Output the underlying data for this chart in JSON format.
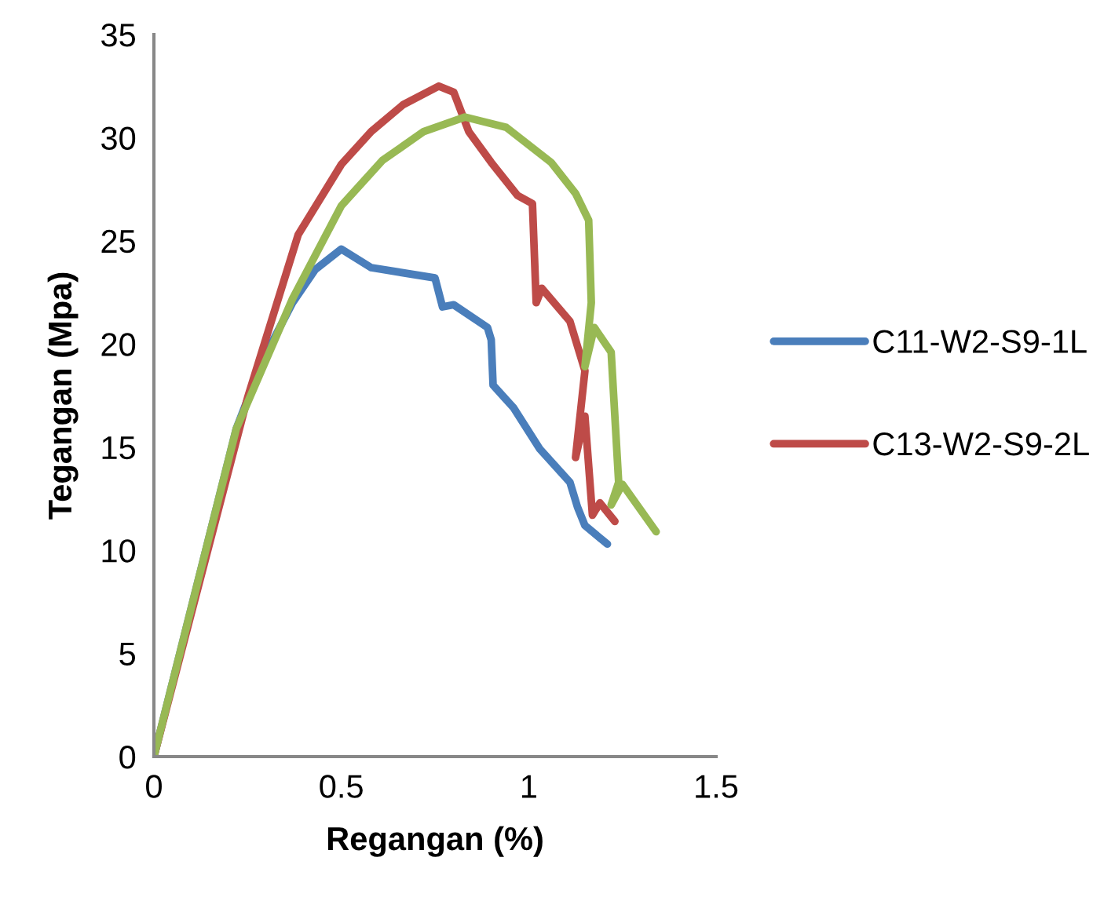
{
  "chart_data": {
    "type": "line",
    "xlabel": "Regangan (%)",
    "ylabel": "Tegangan (Mpa)",
    "xlim": [
      0,
      1.5
    ],
    "xticks": [
      0,
      0.5,
      1,
      1.5
    ],
    "ylim": [
      0,
      35
    ],
    "yticks": [
      0,
      5,
      10,
      15,
      20,
      25,
      30,
      35
    ],
    "grid": false,
    "legend": "right",
    "marker": "none",
    "line_style": "solid",
    "series": [
      {
        "name": "C11-W2-S9-1L",
        "color": "#4a7ebb",
        "x": [
          0,
          0.22,
          0.29,
          0.37,
          0.43,
          0.5,
          0.58,
          0.75,
          0.77,
          0.8,
          0.89,
          0.9,
          0.905,
          0.96,
          1.03,
          1.11,
          1.13,
          1.15,
          1.21
        ],
        "values": [
          0,
          15.9,
          19.2,
          22.0,
          23.6,
          24.6,
          23.7,
          23.2,
          21.8,
          21.9,
          20.8,
          20.2,
          18.0,
          16.9,
          14.9,
          13.3,
          12.1,
          11.2,
          10.3
        ]
      },
      {
        "name": "C13-W2-S9-2L",
        "color": "#be4b48",
        "x": [
          0,
          0.25,
          0.385,
          0.5,
          0.58,
          0.665,
          0.76,
          0.8,
          0.84,
          0.9,
          0.97,
          1.01,
          1.02,
          1.035,
          1.11,
          1.15,
          1.125,
          1.15,
          1.17,
          1.19,
          1.23
        ],
        "values": [
          0,
          17.4,
          25.3,
          28.7,
          30.3,
          31.6,
          32.5,
          32.2,
          30.3,
          28.8,
          27.2,
          26.8,
          22.0,
          22.7,
          21.1,
          18.7,
          14.5,
          16.5,
          11.7,
          12.3,
          11.4
        ]
      },
      {
        "color": "#98b954",
        "x": [
          0,
          0.22,
          0.37,
          0.5,
          0.61,
          0.72,
          0.83,
          0.94,
          1.06,
          1.125,
          1.16,
          1.167,
          1.15,
          1.175,
          1.22,
          1.24,
          1.22,
          1.25,
          1.34
        ],
        "values": [
          0,
          15.9,
          22.2,
          26.7,
          28.9,
          30.3,
          31.0,
          30.5,
          28.8,
          27.3,
          26.0,
          22.0,
          18.9,
          20.8,
          19.6,
          13.3,
          12.2,
          13.2,
          10.9
        ]
      }
    ]
  }
}
